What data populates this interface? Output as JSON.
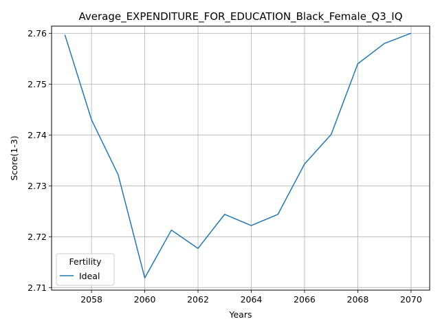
{
  "chart_data": {
    "type": "line",
    "title": "Average_EXPENDITURE_FOR_EDUCATION_Black_Female_Q3_IQ",
    "xlabel": "Years",
    "ylabel": "Score(1-3)",
    "xlim": [
      2056.5,
      2070.7
    ],
    "ylim": [
      2.7095,
      2.7614
    ],
    "x_ticks": [
      2058,
      2060,
      2062,
      2064,
      2066,
      2068,
      2070
    ],
    "y_ticks": [
      2.71,
      2.72,
      2.73,
      2.74,
      2.75,
      2.76
    ],
    "x_tick_labels": [
      "2058",
      "2060",
      "2062",
      "2064",
      "2066",
      "2068",
      "2070"
    ],
    "y_tick_labels": [
      "2.71",
      "2.72",
      "2.73",
      "2.74",
      "2.75",
      "2.76"
    ],
    "grid": true,
    "legend": {
      "title": "Fertility",
      "placement": "lower-left"
    },
    "x": [
      2057,
      2058,
      2059,
      2060,
      2061,
      2062,
      2063,
      2064,
      2065,
      2066,
      2067,
      2068,
      2069,
      2070
    ],
    "series": [
      {
        "name": "Ideal",
        "color": "#1f77b4",
        "values": [
          2.7597,
          2.743,
          2.7322,
          2.7119,
          2.7213,
          2.7177,
          2.7244,
          2.7222,
          2.7244,
          2.7343,
          2.7401,
          2.754,
          2.758,
          2.76
        ]
      }
    ]
  }
}
